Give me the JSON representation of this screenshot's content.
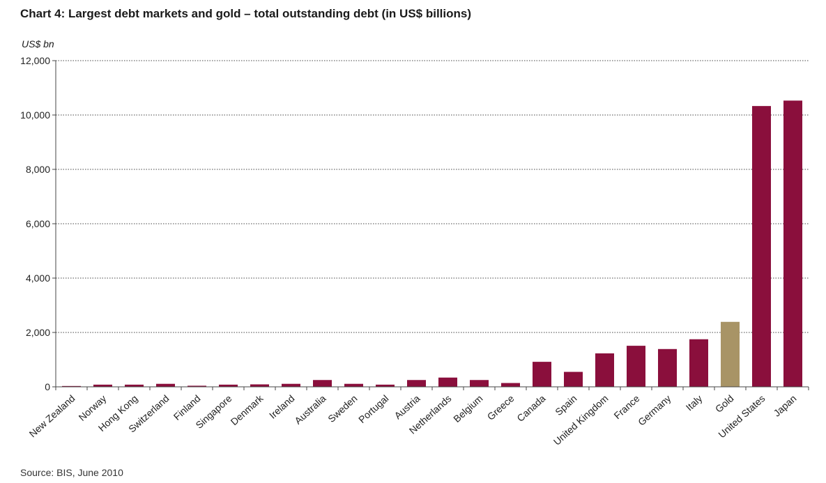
{
  "chart_data": {
    "type": "bar",
    "title": "Chart 4: Largest debt markets and gold – total outstanding debt (in US$ billions)",
    "ylabel": "US$ bn",
    "xlabel": "",
    "ylim": [
      0,
      12000
    ],
    "yticks": [
      0,
      2000,
      4000,
      6000,
      8000,
      10000,
      12000
    ],
    "ytick_labels": [
      "0",
      "2,000",
      "4,000",
      "6,000",
      "8,000",
      "10,000",
      "12,000"
    ],
    "grid": "horizontal dotted",
    "categories": [
      "New Zealand",
      "Norway",
      "Hong Kong",
      "Switzerland",
      "Finland",
      "Singapore",
      "Denmark",
      "Ireland",
      "Australia",
      "Sweden",
      "Portugal",
      "Austria",
      "Netherlands",
      "Belgium",
      "Greece",
      "Canada",
      "Spain",
      "United Kingdom",
      "France",
      "Germany",
      "Italy",
      "Gold",
      "United States",
      "Japan"
    ],
    "values": [
      30,
      80,
      80,
      110,
      40,
      80,
      90,
      110,
      250,
      110,
      80,
      250,
      340,
      250,
      140,
      920,
      550,
      1230,
      1510,
      1390,
      1750,
      2390,
      10330,
      10530
    ],
    "colors": {
      "debt": "#8a0f3c",
      "gold": "#a89466"
    },
    "source": "Source: BIS, June 2010"
  }
}
